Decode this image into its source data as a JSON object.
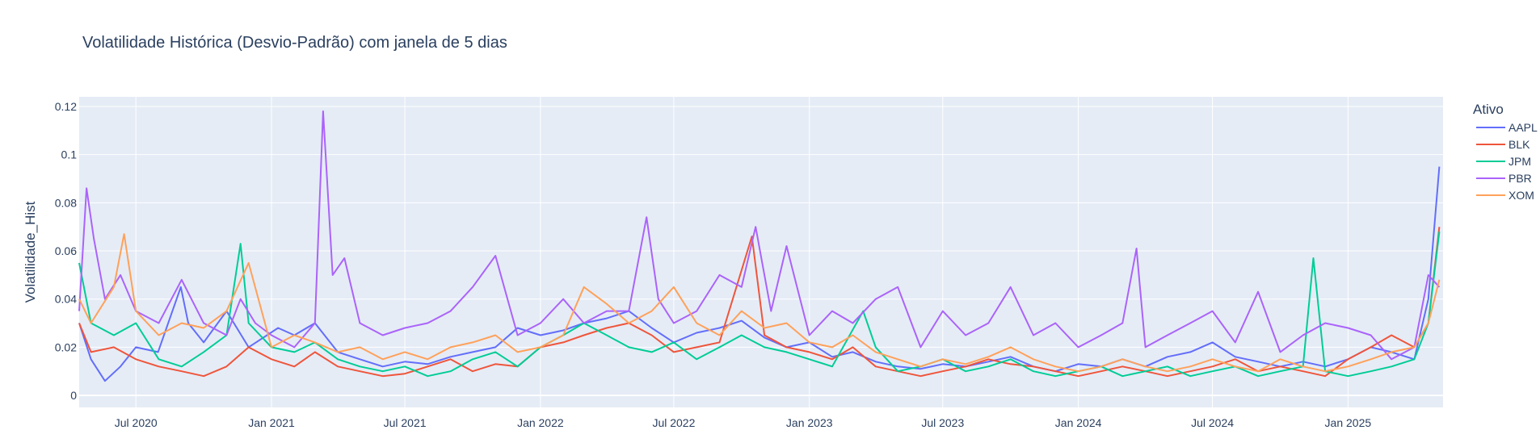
{
  "chart_data": {
    "type": "line",
    "title": "Volatilidade Histórica (Desvio-Padrão) com janela de 5 dias",
    "xlabel": "",
    "ylabel": "Volatilidade_Hist",
    "x_range": [
      "2020-04-15",
      "2025-05-10"
    ],
    "x_ticks": [
      {
        "date": "2020-07-01",
        "label": "Jul 2020"
      },
      {
        "date": "2021-01-01",
        "label": "Jan 2021"
      },
      {
        "date": "2021-07-01",
        "label": "Jul 2021"
      },
      {
        "date": "2022-01-01",
        "label": "Jan 2022"
      },
      {
        "date": "2022-07-01",
        "label": "Jul 2022"
      },
      {
        "date": "2023-01-01",
        "label": "Jan 2023"
      },
      {
        "date": "2023-07-01",
        "label": "Jul 2023"
      },
      {
        "date": "2024-01-01",
        "label": "Jan 2024"
      },
      {
        "date": "2024-07-01",
        "label": "Jul 2024"
      },
      {
        "date": "2025-01-01",
        "label": "Jan 2025"
      }
    ],
    "ylim": [
      -0.005,
      0.124
    ],
    "y_ticks": [
      {
        "value": 0,
        "label": "0"
      },
      {
        "value": 0.02,
        "label": "0.02"
      },
      {
        "value": 0.04,
        "label": "0.04"
      },
      {
        "value": 0.06,
        "label": "0.06"
      },
      {
        "value": 0.08,
        "label": "0.08"
      },
      {
        "value": 0.1,
        "label": "0.1"
      },
      {
        "value": 0.12,
        "label": "0.12"
      }
    ],
    "grid": true,
    "legend": {
      "title": "Ativo",
      "position": "right"
    },
    "series": [
      {
        "name": "AAPL",
        "color": "#636efa",
        "x": [
          "2020-04-15",
          "2020-05-01",
          "2020-05-20",
          "2020-06-10",
          "2020-07-01",
          "2020-07-31",
          "2020-08-31",
          "2020-09-10",
          "2020-10-01",
          "2020-11-01",
          "2020-12-01",
          "2021-01-10",
          "2021-02-01",
          "2021-03-01",
          "2021-04-01",
          "2021-05-01",
          "2021-06-01",
          "2021-07-01",
          "2021-08-01",
          "2021-09-01",
          "2021-10-01",
          "2021-11-01",
          "2021-12-01",
          "2022-01-01",
          "2022-02-01",
          "2022-03-01",
          "2022-04-01",
          "2022-05-01",
          "2022-06-01",
          "2022-07-01",
          "2022-08-01",
          "2022-09-01",
          "2022-10-01",
          "2022-11-01",
          "2022-12-01",
          "2023-01-01",
          "2023-02-01",
          "2023-03-01",
          "2023-04-01",
          "2023-05-01",
          "2023-06-01",
          "2023-07-01",
          "2023-08-01",
          "2023-09-01",
          "2023-10-01",
          "2023-11-01",
          "2023-12-01",
          "2024-01-01",
          "2024-02-01",
          "2024-03-01",
          "2024-04-01",
          "2024-05-01",
          "2024-06-01",
          "2024-07-01",
          "2024-08-01",
          "2024-09-01",
          "2024-10-01",
          "2024-11-01",
          "2024-12-01",
          "2025-01-01",
          "2025-02-01",
          "2025-03-01",
          "2025-04-01",
          "2025-04-20",
          "2025-05-05"
        ],
        "y": [
          0.03,
          0.015,
          0.006,
          0.012,
          0.02,
          0.018,
          0.045,
          0.03,
          0.022,
          0.035,
          0.02,
          0.028,
          0.025,
          0.03,
          0.018,
          0.015,
          0.012,
          0.014,
          0.013,
          0.016,
          0.018,
          0.02,
          0.028,
          0.025,
          0.027,
          0.03,
          0.032,
          0.035,
          0.028,
          0.022,
          0.026,
          0.028,
          0.031,
          0.024,
          0.02,
          0.022,
          0.016,
          0.018,
          0.014,
          0.012,
          0.011,
          0.013,
          0.012,
          0.014,
          0.016,
          0.012,
          0.01,
          0.013,
          0.012,
          0.015,
          0.012,
          0.016,
          0.018,
          0.022,
          0.016,
          0.014,
          0.012,
          0.014,
          0.012,
          0.015,
          0.02,
          0.018,
          0.015,
          0.04,
          0.095
        ]
      },
      {
        "name": "BLK",
        "color": "#ef553b",
        "x": [
          "2020-04-15",
          "2020-05-01",
          "2020-06-01",
          "2020-07-01",
          "2020-08-01",
          "2020-09-01",
          "2020-10-01",
          "2020-11-01",
          "2020-12-01",
          "2021-01-01",
          "2021-02-01",
          "2021-03-01",
          "2021-04-01",
          "2021-05-01",
          "2021-06-01",
          "2021-07-01",
          "2021-08-01",
          "2021-09-01",
          "2021-10-01",
          "2021-11-01",
          "2021-12-01",
          "2022-01-01",
          "2022-02-01",
          "2022-03-01",
          "2022-04-01",
          "2022-05-01",
          "2022-06-01",
          "2022-07-01",
          "2022-08-01",
          "2022-09-01",
          "2022-10-15",
          "2022-11-01",
          "2022-12-01",
          "2023-01-01",
          "2023-02-01",
          "2023-03-01",
          "2023-04-01",
          "2023-05-01",
          "2023-06-01",
          "2023-07-01",
          "2023-08-01",
          "2023-09-01",
          "2023-10-01",
          "2023-11-01",
          "2023-12-01",
          "2024-01-01",
          "2024-02-01",
          "2024-03-01",
          "2024-04-01",
          "2024-05-01",
          "2024-06-01",
          "2024-07-01",
          "2024-08-01",
          "2024-09-01",
          "2024-10-01",
          "2024-11-01",
          "2024-12-01",
          "2025-01-01",
          "2025-02-01",
          "2025-03-01",
          "2025-04-01",
          "2025-04-20",
          "2025-05-05"
        ],
        "y": [
          0.03,
          0.018,
          0.02,
          0.015,
          0.012,
          0.01,
          0.008,
          0.012,
          0.02,
          0.015,
          0.012,
          0.018,
          0.012,
          0.01,
          0.008,
          0.009,
          0.012,
          0.015,
          0.01,
          0.013,
          0.012,
          0.02,
          0.022,
          0.025,
          0.028,
          0.03,
          0.025,
          0.018,
          0.02,
          0.022,
          0.066,
          0.025,
          0.02,
          0.018,
          0.015,
          0.02,
          0.012,
          0.01,
          0.008,
          0.01,
          0.012,
          0.015,
          0.013,
          0.012,
          0.01,
          0.008,
          0.01,
          0.012,
          0.01,
          0.008,
          0.01,
          0.012,
          0.015,
          0.01,
          0.012,
          0.01,
          0.008,
          0.015,
          0.02,
          0.025,
          0.02,
          0.03,
          0.07
        ]
      },
      {
        "name": "JPM",
        "color": "#00cc96",
        "x": [
          "2020-04-15",
          "2020-05-01",
          "2020-06-01",
          "2020-07-01",
          "2020-08-01",
          "2020-09-01",
          "2020-10-01",
          "2020-11-01",
          "2020-11-20",
          "2020-12-01",
          "2021-01-01",
          "2021-02-01",
          "2021-03-01",
          "2021-04-01",
          "2021-05-01",
          "2021-06-01",
          "2021-07-01",
          "2021-08-01",
          "2021-09-01",
          "2021-10-01",
          "2021-11-01",
          "2021-12-01",
          "2022-01-01",
          "2022-02-01",
          "2022-03-01",
          "2022-04-01",
          "2022-05-01",
          "2022-06-01",
          "2022-07-01",
          "2022-08-01",
          "2022-09-01",
          "2022-10-01",
          "2022-11-01",
          "2022-12-01",
          "2023-01-01",
          "2023-02-01",
          "2023-03-15",
          "2023-04-01",
          "2023-05-01",
          "2023-06-01",
          "2023-07-01",
          "2023-08-01",
          "2023-09-01",
          "2023-10-01",
          "2023-11-01",
          "2023-12-01",
          "2024-01-01",
          "2024-02-01",
          "2024-03-01",
          "2024-04-01",
          "2024-05-01",
          "2024-06-01",
          "2024-07-01",
          "2024-08-01",
          "2024-09-01",
          "2024-10-01",
          "2024-11-01",
          "2024-11-15",
          "2024-12-01",
          "2025-01-01",
          "2025-02-01",
          "2025-03-01",
          "2025-04-01",
          "2025-04-20",
          "2025-05-05"
        ],
        "y": [
          0.055,
          0.03,
          0.025,
          0.03,
          0.015,
          0.012,
          0.018,
          0.025,
          0.063,
          0.03,
          0.02,
          0.018,
          0.022,
          0.015,
          0.012,
          0.01,
          0.012,
          0.008,
          0.01,
          0.015,
          0.018,
          0.012,
          0.02,
          0.025,
          0.03,
          0.025,
          0.02,
          0.018,
          0.022,
          0.015,
          0.02,
          0.025,
          0.02,
          0.018,
          0.015,
          0.012,
          0.035,
          0.02,
          0.01,
          0.012,
          0.015,
          0.01,
          0.012,
          0.015,
          0.01,
          0.008,
          0.01,
          0.012,
          0.008,
          0.01,
          0.012,
          0.008,
          0.01,
          0.012,
          0.008,
          0.01,
          0.012,
          0.057,
          0.01,
          0.008,
          0.01,
          0.012,
          0.015,
          0.03,
          0.068
        ]
      },
      {
        "name": "PBR",
        "color": "#ab63fa",
        "x": [
          "2020-04-15",
          "2020-04-25",
          "2020-05-05",
          "2020-05-20",
          "2020-06-10",
          "2020-07-01",
          "2020-08-01",
          "2020-09-01",
          "2020-10-01",
          "2020-11-01",
          "2020-11-20",
          "2020-12-10",
          "2021-01-01",
          "2021-02-01",
          "2021-03-01",
          "2021-03-12",
          "2021-03-25",
          "2021-04-10",
          "2021-05-01",
          "2021-06-01",
          "2021-07-01",
          "2021-08-01",
          "2021-09-01",
          "2021-10-01",
          "2021-11-01",
          "2021-12-01",
          "2022-01-01",
          "2022-02-01",
          "2022-03-01",
          "2022-04-01",
          "2022-05-01",
          "2022-05-25",
          "2022-06-10",
          "2022-07-01",
          "2022-08-01",
          "2022-09-01",
          "2022-10-01",
          "2022-10-20",
          "2022-11-10",
          "2022-12-01",
          "2023-01-01",
          "2023-02-01",
          "2023-03-01",
          "2023-04-01",
          "2023-05-01",
          "2023-06-01",
          "2023-07-01",
          "2023-08-01",
          "2023-09-01",
          "2023-10-01",
          "2023-11-01",
          "2023-12-01",
          "2024-01-01",
          "2024-02-01",
          "2024-03-01",
          "2024-03-20",
          "2024-04-01",
          "2024-05-01",
          "2024-06-01",
          "2024-07-01",
          "2024-08-01",
          "2024-09-01",
          "2024-10-01",
          "2024-11-01",
          "2024-12-01",
          "2025-01-01",
          "2025-02-01",
          "2025-03-01",
          "2025-04-01",
          "2025-04-20",
          "2025-05-05"
        ],
        "y": [
          0.035,
          0.086,
          0.065,
          0.04,
          0.05,
          0.035,
          0.03,
          0.048,
          0.03,
          0.025,
          0.04,
          0.03,
          0.025,
          0.02,
          0.03,
          0.118,
          0.05,
          0.057,
          0.03,
          0.025,
          0.028,
          0.03,
          0.035,
          0.045,
          0.058,
          0.025,
          0.03,
          0.04,
          0.03,
          0.035,
          0.035,
          0.074,
          0.04,
          0.03,
          0.035,
          0.05,
          0.045,
          0.07,
          0.035,
          0.062,
          0.025,
          0.035,
          0.03,
          0.04,
          0.045,
          0.02,
          0.035,
          0.025,
          0.03,
          0.045,
          0.025,
          0.03,
          0.02,
          0.025,
          0.03,
          0.061,
          0.02,
          0.025,
          0.03,
          0.035,
          0.022,
          0.043,
          0.018,
          0.025,
          0.03,
          0.028,
          0.025,
          0.015,
          0.02,
          0.05,
          0.045
        ]
      },
      {
        "name": "XOM",
        "color": "#ffa15a",
        "x": [
          "2020-04-15",
          "2020-05-01",
          "2020-06-01",
          "2020-06-15",
          "2020-07-01",
          "2020-08-01",
          "2020-09-01",
          "2020-10-01",
          "2020-11-01",
          "2020-12-01",
          "2021-01-01",
          "2021-02-01",
          "2021-03-01",
          "2021-04-01",
          "2021-05-01",
          "2021-06-01",
          "2021-07-01",
          "2021-08-01",
          "2021-09-01",
          "2021-10-01",
          "2021-11-01",
          "2021-12-01",
          "2022-01-01",
          "2022-02-01",
          "2022-03-01",
          "2022-04-01",
          "2022-05-01",
          "2022-06-01",
          "2022-07-01",
          "2022-08-01",
          "2022-09-01",
          "2022-10-01",
          "2022-11-01",
          "2022-12-01",
          "2023-01-01",
          "2023-02-01",
          "2023-03-01",
          "2023-04-01",
          "2023-05-01",
          "2023-06-01",
          "2023-07-01",
          "2023-08-01",
          "2023-09-01",
          "2023-10-01",
          "2023-11-01",
          "2023-12-01",
          "2024-01-01",
          "2024-02-01",
          "2024-03-01",
          "2024-04-01",
          "2024-05-01",
          "2024-06-01",
          "2024-07-01",
          "2024-08-01",
          "2024-09-01",
          "2024-10-01",
          "2024-11-01",
          "2024-12-01",
          "2025-01-01",
          "2025-02-01",
          "2025-03-01",
          "2025-04-01",
          "2025-04-20",
          "2025-05-05"
        ],
        "y": [
          0.04,
          0.03,
          0.045,
          0.067,
          0.035,
          0.025,
          0.03,
          0.028,
          0.035,
          0.055,
          0.02,
          0.025,
          0.022,
          0.018,
          0.02,
          0.015,
          0.018,
          0.015,
          0.02,
          0.022,
          0.025,
          0.018,
          0.02,
          0.025,
          0.045,
          0.038,
          0.03,
          0.035,
          0.045,
          0.03,
          0.025,
          0.035,
          0.028,
          0.03,
          0.022,
          0.02,
          0.025,
          0.018,
          0.015,
          0.012,
          0.015,
          0.013,
          0.016,
          0.02,
          0.015,
          0.012,
          0.01,
          0.012,
          0.015,
          0.012,
          0.01,
          0.012,
          0.015,
          0.012,
          0.01,
          0.015,
          0.012,
          0.01,
          0.012,
          0.015,
          0.018,
          0.02,
          0.03,
          0.048
        ]
      }
    ]
  }
}
